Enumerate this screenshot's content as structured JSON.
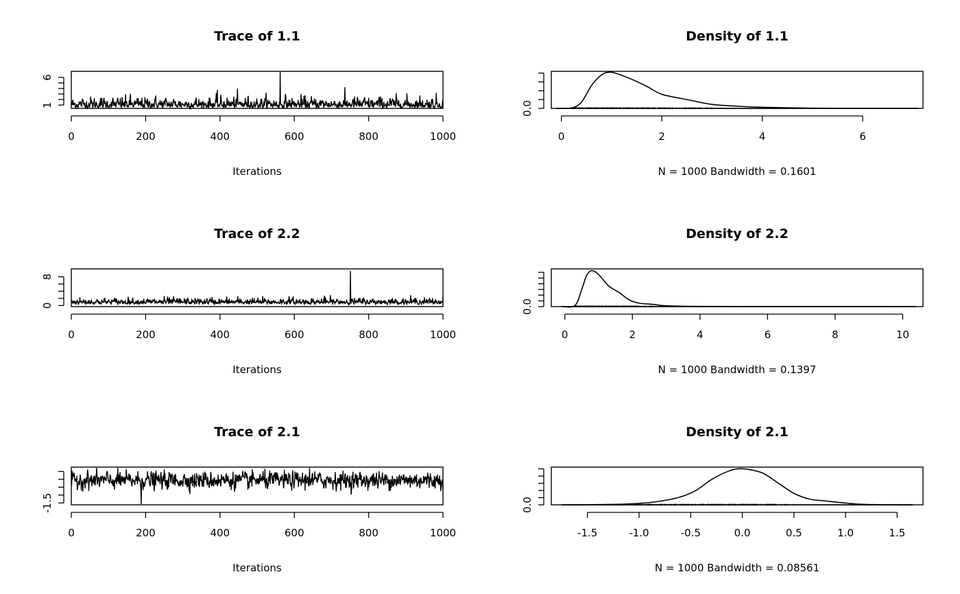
{
  "chart_data": [
    {
      "type": "line",
      "title": "Trace of 1.1",
      "xlabel": "Iterations",
      "xlim": [
        0,
        1000
      ],
      "xticks": [
        "0",
        "200",
        "400",
        "600",
        "800",
        "1000"
      ],
      "xtick_values": [
        0,
        200,
        400,
        600,
        800,
        1000
      ],
      "ylim": [
        0.4,
        7.1
      ],
      "ytick_values": [
        1,
        2,
        3,
        4,
        5,
        6
      ],
      "ytick_labels": [
        "1",
        "6"
      ],
      "n": 1000
    },
    {
      "type": "line",
      "title": "Density of 1.1",
      "xlabel": "N = 1000   Bandwidth = 0.1601",
      "xlim": [
        -0.2,
        7.2
      ],
      "xticks": [
        "0",
        "2",
        "4",
        "6"
      ],
      "xtick_values": [
        0,
        2,
        4,
        6
      ],
      "ylim": [
        0,
        0.42
      ],
      "ytick_values": [
        0,
        0.1,
        0.2,
        0.3,
        0.4
      ],
      "ytick_labels": [
        "0.0"
      ],
      "x": [
        -0.1,
        0.2,
        0.4,
        0.6,
        0.8,
        0.95,
        1.1,
        1.4,
        1.7,
        2.0,
        2.5,
        3.0,
        3.5,
        4.0,
        5.0,
        6.0,
        7.1
      ],
      "y": [
        0,
        0.005,
        0.07,
        0.26,
        0.38,
        0.41,
        0.395,
        0.33,
        0.25,
        0.16,
        0.1,
        0.045,
        0.025,
        0.012,
        0.003,
        0.001,
        0
      ]
    },
    {
      "type": "line",
      "title": "Trace of 2.2",
      "xlabel": "Iterations",
      "xlim": [
        0,
        1000
      ],
      "xticks": [
        "0",
        "200",
        "400",
        "600",
        "800",
        "1000"
      ],
      "xtick_values": [
        0,
        200,
        400,
        600,
        800,
        1000
      ],
      "ylim": [
        -0.3,
        10.2
      ],
      "ytick_values": [
        0,
        2,
        4,
        6,
        8
      ],
      "ytick_labels": [
        "0",
        "8"
      ],
      "n": 1000
    },
    {
      "type": "line",
      "title": "Density of 2.2",
      "xlabel": "N = 1000   Bandwidth = 0.1397",
      "xlim": [
        -0.4,
        10.6
      ],
      "xticks": [
        "0",
        "2",
        "4",
        "6",
        "8",
        "10"
      ],
      "xtick_values": [
        0,
        2,
        4,
        6,
        8,
        10
      ],
      "ylim": [
        0,
        0.66
      ],
      "ytick_values": [
        0,
        0.1,
        0.2,
        0.3,
        0.4,
        0.5,
        0.6
      ],
      "ytick_labels": [
        "0.0"
      ],
      "x": [
        -0.1,
        0.3,
        0.5,
        0.65,
        0.8,
        1.0,
        1.3,
        1.6,
        1.9,
        2.2,
        2.6,
        3.0,
        4.0,
        6.0,
        10.4
      ],
      "y": [
        0,
        0.02,
        0.3,
        0.55,
        0.63,
        0.56,
        0.36,
        0.25,
        0.12,
        0.06,
        0.04,
        0.015,
        0.004,
        0.001,
        0
      ]
    },
    {
      "type": "line",
      "title": "Trace of 2.1",
      "xlabel": "Iterations",
      "xlim": [
        0,
        1000
      ],
      "xticks": [
        "0",
        "200",
        "400",
        "600",
        "800",
        "1000"
      ],
      "xtick_values": [
        0,
        200,
        400,
        600,
        800,
        1000
      ],
      "ylim": [
        -1.62,
        0.78
      ],
      "ytick_values": [
        -1.5,
        -1.0,
        -0.5,
        0.0,
        0.5
      ],
      "ytick_labels": [
        "-1.5"
      ],
      "n": 1000
    },
    {
      "type": "line",
      "title": "Density of 2.1",
      "xlabel": "N = 1000   Bandwidth = 0.08561",
      "xlim": [
        -1.85,
        1.75
      ],
      "xticks": [
        "-1.5",
        "-1.0",
        "-0.5",
        "0.0",
        "0.5",
        "1.0",
        "1.5"
      ],
      "xtick_values": [
        -1.5,
        -1.0,
        -0.5,
        0,
        0.5,
        1.0,
        1.5
      ],
      "ylim": [
        0,
        1.05
      ],
      "ytick_values": [
        0,
        0.2,
        0.4,
        0.6,
        0.8,
        1.0
      ],
      "ytick_labels": [
        "0.0"
      ],
      "x": [
        -1.75,
        -1.3,
        -1.0,
        -0.8,
        -0.6,
        -0.45,
        -0.3,
        -0.15,
        -0.05,
        0.05,
        0.2,
        0.35,
        0.5,
        0.65,
        0.8,
        1.0,
        1.2,
        1.65
      ],
      "y": [
        0,
        0.01,
        0.04,
        0.1,
        0.22,
        0.4,
        0.7,
        0.92,
        1.0,
        0.99,
        0.88,
        0.6,
        0.32,
        0.16,
        0.11,
        0.05,
        0.01,
        0
      ]
    }
  ]
}
